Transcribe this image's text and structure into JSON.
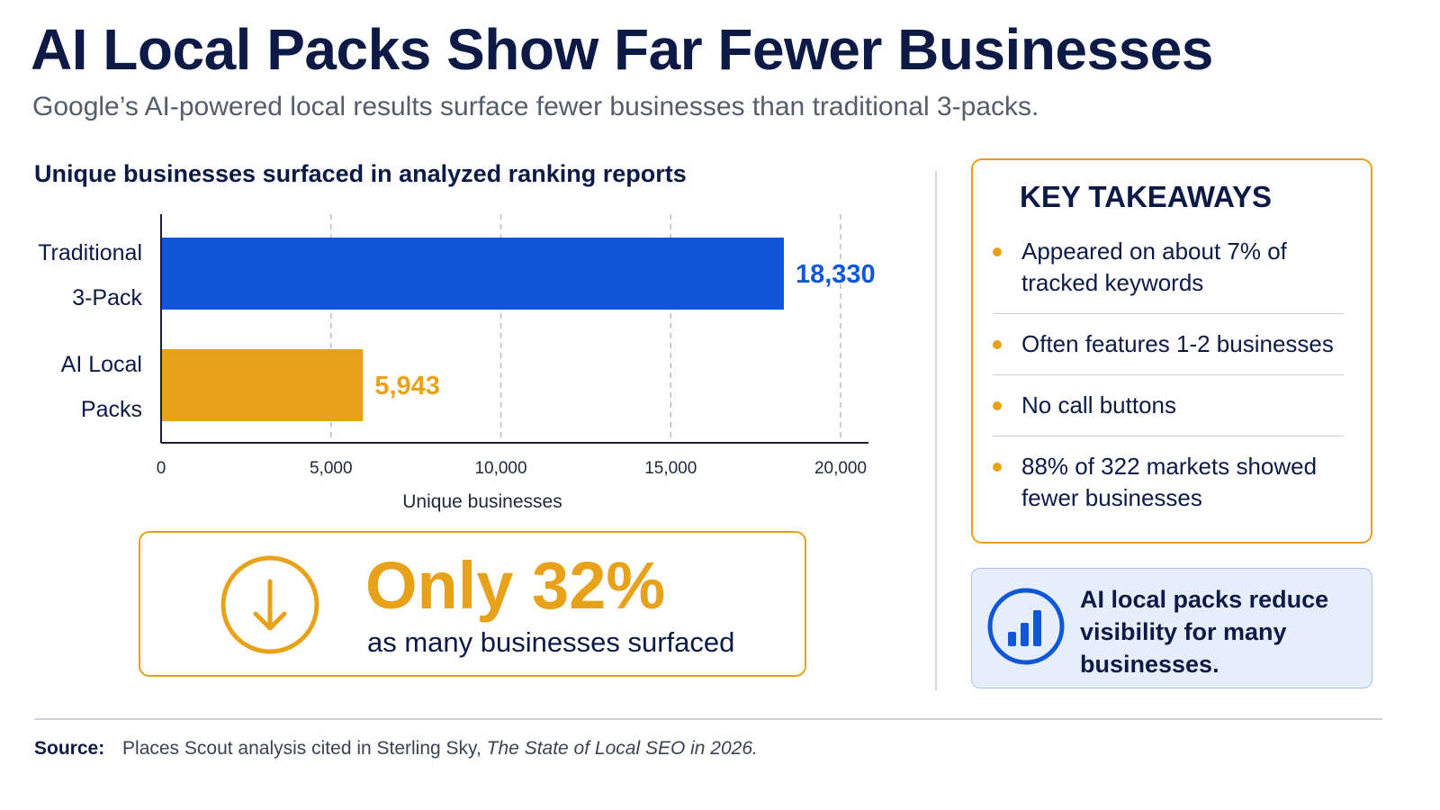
{
  "title": "AI Local Packs Show Far Fewer Businesses",
  "subtitle": "Google’s AI-powered local results surface fewer businesses than traditional 3-packs.",
  "chart_data": {
    "type": "bar",
    "orientation": "horizontal",
    "title": "Unique businesses surfaced in analyzed ranking reports",
    "categories": [
      {
        "line1": "Traditional",
        "line2": "3-Pack"
      },
      {
        "line1": "AI Local",
        "line2": "Packs"
      }
    ],
    "values": [
      18330,
      5943
    ],
    "value_labels": [
      "18,330",
      "5,943"
    ],
    "colors": [
      "#0f56d9",
      "#e8a21a"
    ],
    "xlabel": "Unique businesses",
    "xlim": [
      0,
      20000
    ],
    "xticks": [
      0,
      5000,
      10000,
      15000,
      20000
    ],
    "xtick_labels": [
      "0",
      "5,000",
      "10,000",
      "15,000",
      "20,000"
    ],
    "grid": "vertical dashed"
  },
  "callout": {
    "headline": "Only 32%",
    "text": "as many businesses surfaced",
    "icon": "arrow-down-circle-icon",
    "color": "#e8a21a"
  },
  "takeaways": {
    "title": "KEY TAKEAWAYS",
    "items": [
      "Appeared on about 7% of tracked keywords",
      "Often features 1-2 businesses",
      "No call buttons",
      "88% of 322 markets showed fewer businesses"
    ]
  },
  "insight": {
    "text": "AI local packs reduce visibility for many businesses.",
    "icon": "bar-chart-icon",
    "color": "#0f56d9"
  },
  "source": {
    "label": "Source:",
    "text": "Places Scout analysis cited in Sterling Sky,",
    "publication": "The State of Local SEO in 2026."
  }
}
